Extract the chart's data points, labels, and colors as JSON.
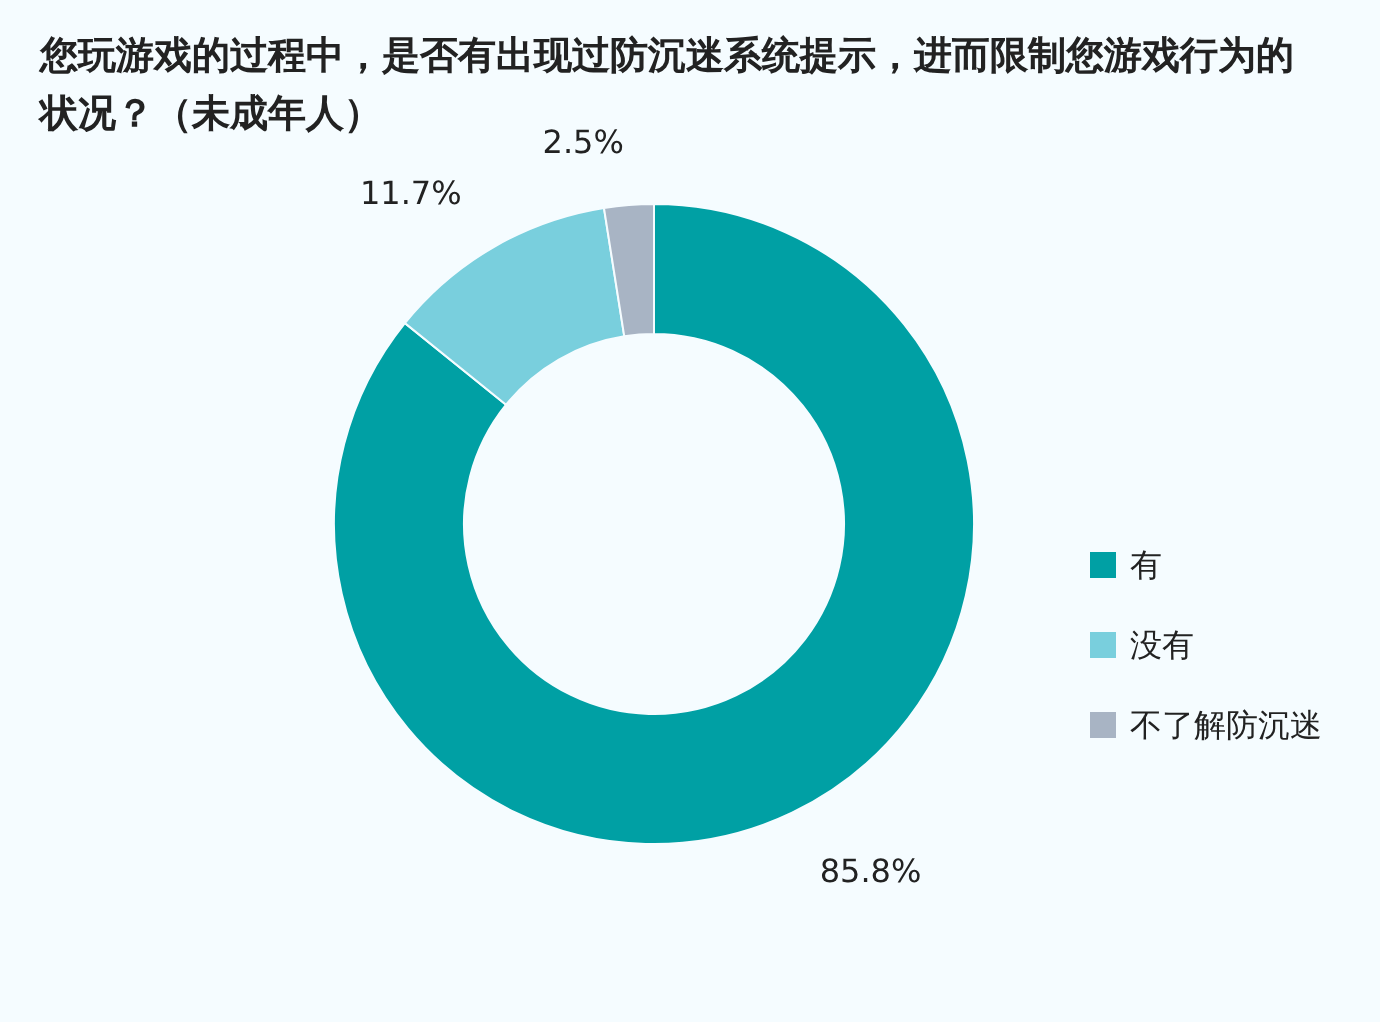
{
  "chart_data": {
    "type": "donut",
    "title": "您玩游戏的过程中，是否有出现过防沉迷系统提示，进而限制您游戏行为的状况？（未成年人）",
    "categories": [
      "有",
      "没有",
      "不了解防沉迷"
    ],
    "values": [
      85.8,
      11.7,
      2.5
    ],
    "colors": [
      "#00a0a4",
      "#79cfdd",
      "#a8b4c4"
    ],
    "value_labels": [
      "85.8%",
      "11.7%",
      "2.5%"
    ],
    "legend": "right"
  }
}
